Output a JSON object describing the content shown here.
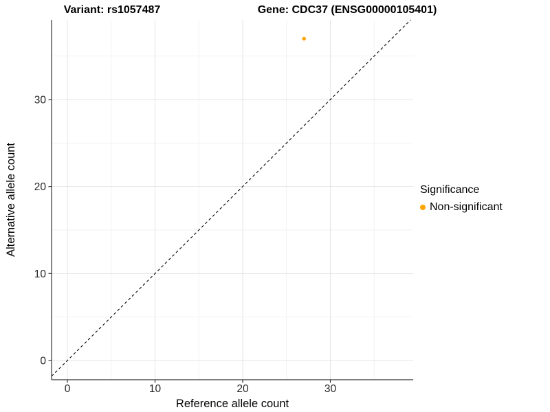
{
  "title_left": "Variant: rs1057487",
  "title_right": "Gene: CDC37 (ENSG00000105401)",
  "legend": {
    "title": "Significance",
    "items": [
      {
        "label": "Non-significant",
        "color": "#FFA500"
      }
    ]
  },
  "chart_data": {
    "type": "scatter",
    "title": "Variant: rs1057487 — Gene: CDC37 (ENSG00000105401)",
    "xlabel": "Reference allele count",
    "ylabel": "Alternative allele count",
    "xlim": [
      -1.8,
      39.5
    ],
    "ylim": [
      -2.2,
      39.2
    ],
    "x_major_ticks": [
      0,
      10,
      20,
      30
    ],
    "y_major_ticks": [
      0,
      10,
      20,
      30
    ],
    "x_minor_ticks": [
      5,
      15,
      25,
      35
    ],
    "y_minor_ticks": [
      5,
      15,
      25,
      35
    ],
    "grid": true,
    "legend_position": "right",
    "identity_line": {
      "slope": 1,
      "intercept": 0,
      "style": "dashed",
      "color": "#000000"
    },
    "series": [
      {
        "name": "Non-significant",
        "color": "#FFA500",
        "points": [
          {
            "x": 27,
            "y": 37
          }
        ]
      }
    ],
    "colors": {
      "grid_major": "#E4E4E4",
      "grid_minor": "#F2F2F2",
      "axis_line": "#333333",
      "tick_label": "#262626",
      "axis_title": "#000000"
    }
  }
}
